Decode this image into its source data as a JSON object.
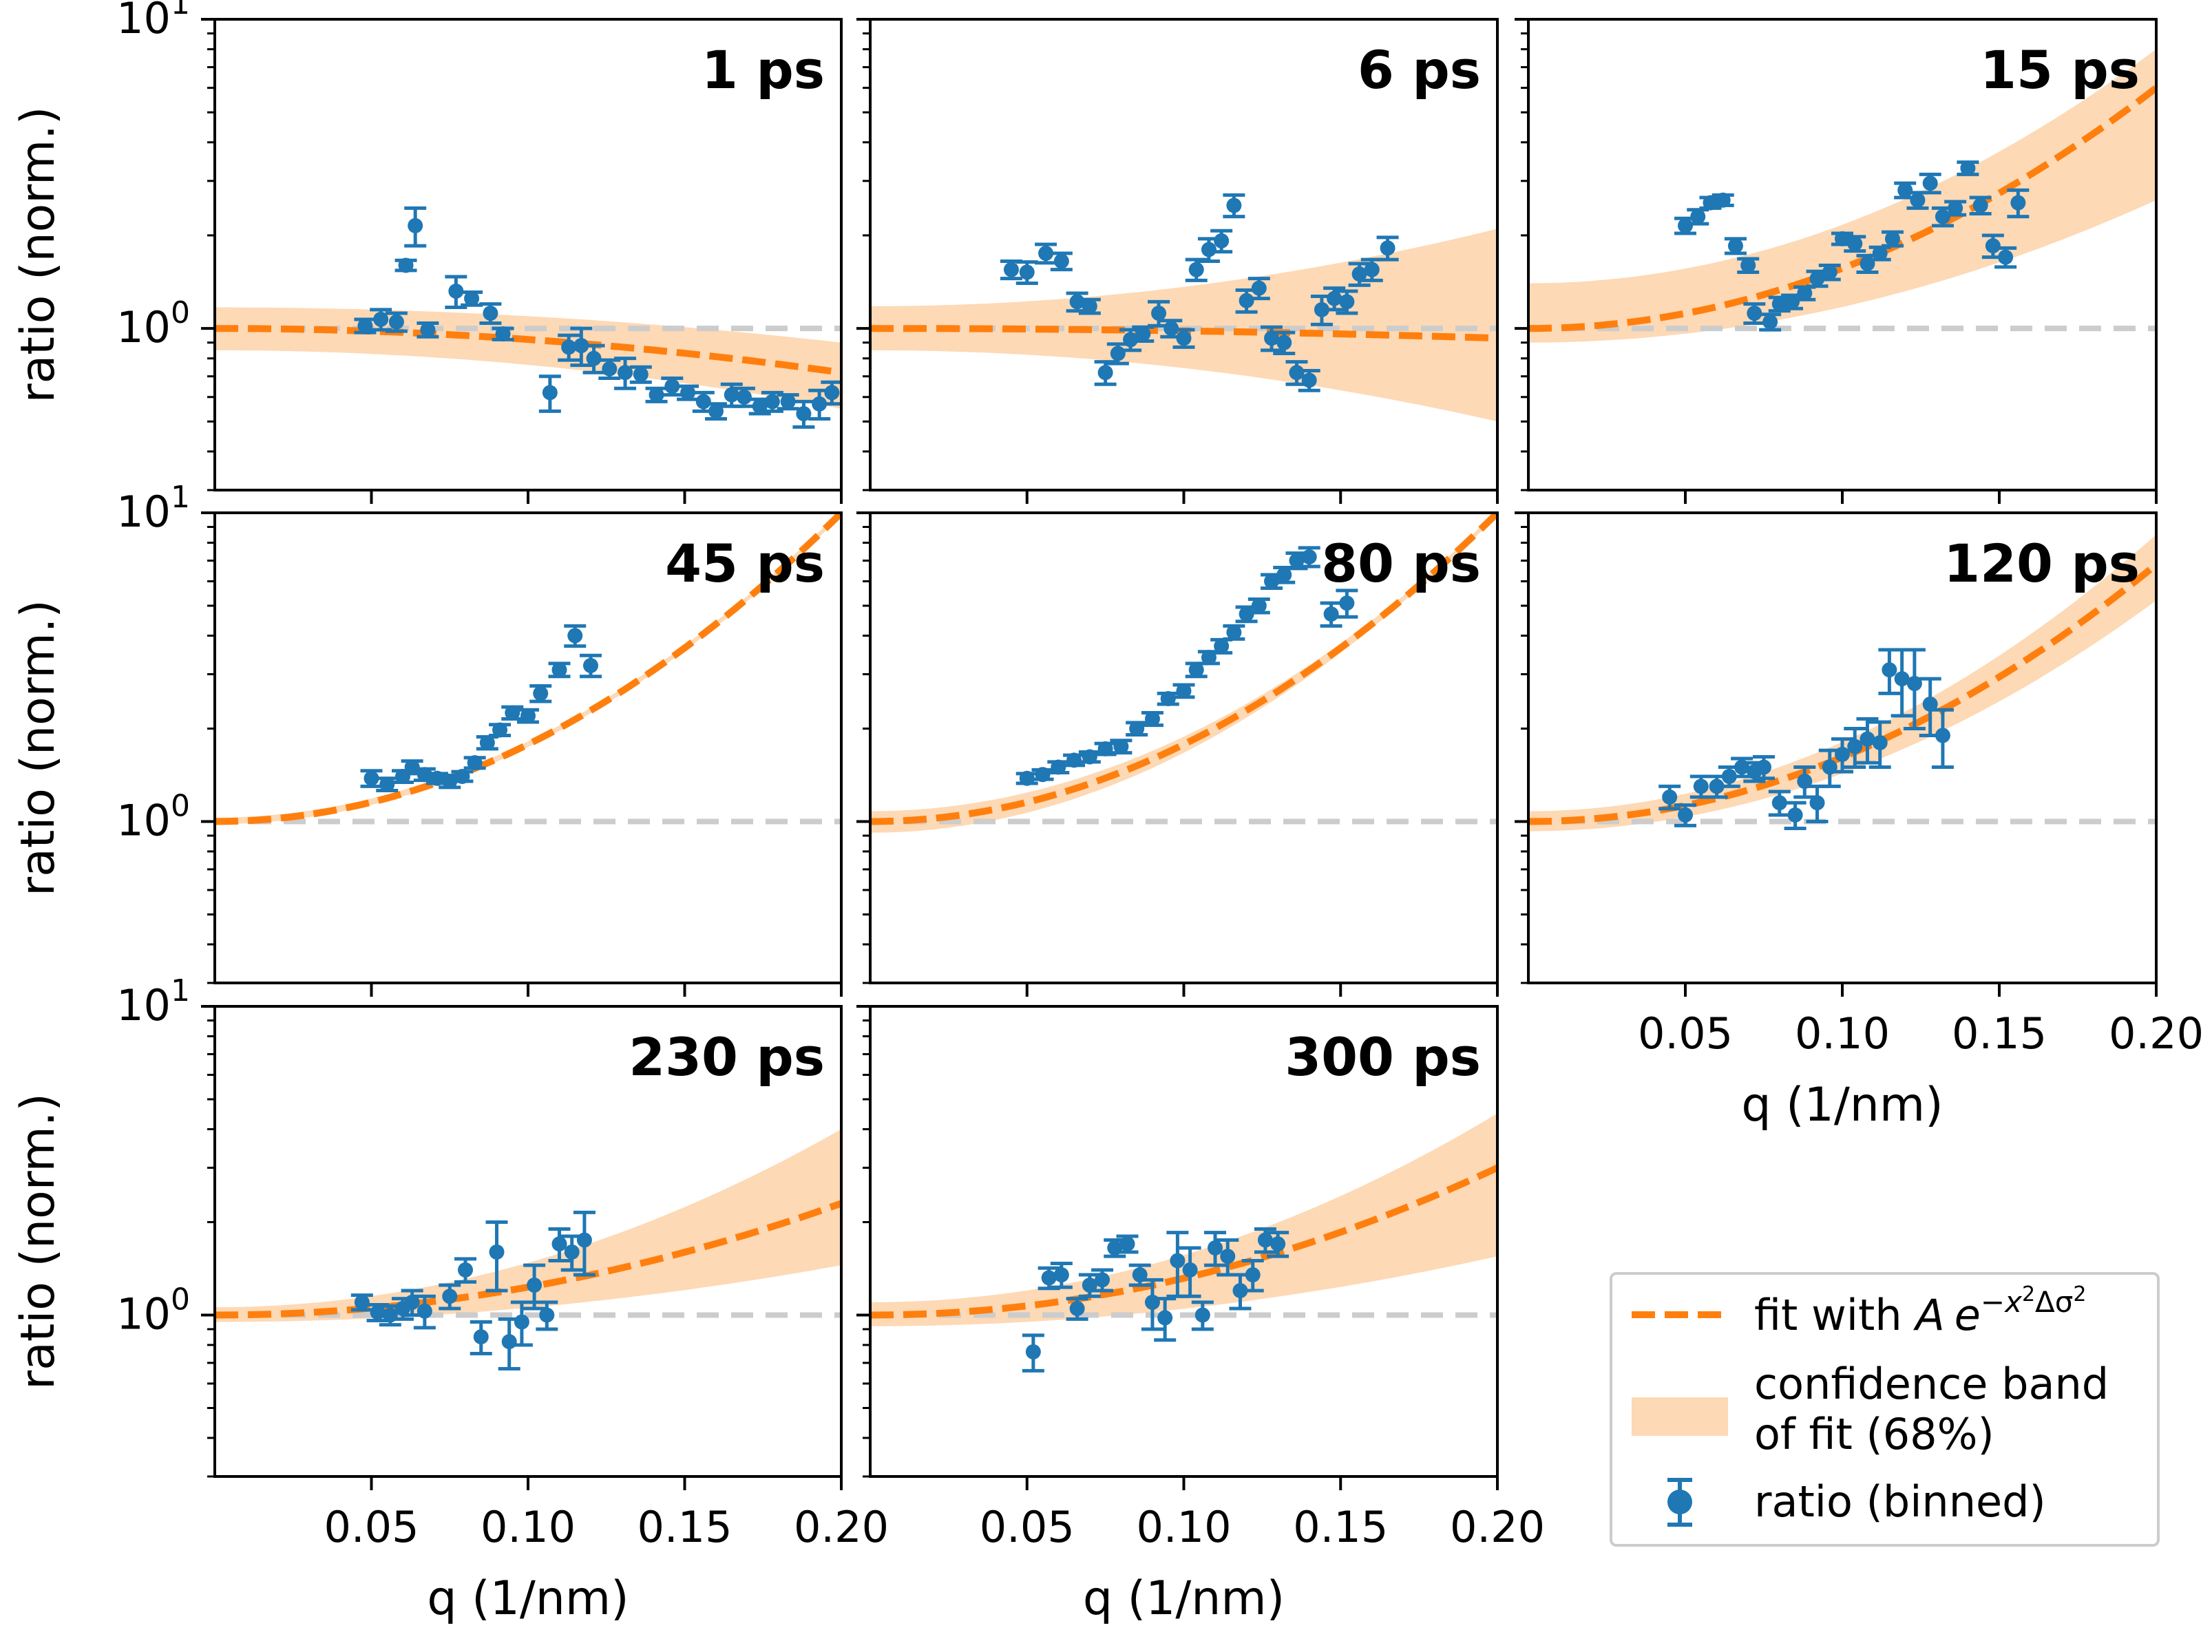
{
  "chart_data": {
    "type": "scatter",
    "layout": "3x3 grid of panels, shared log-scale y axis, shared linear x axis",
    "xlabel": "q (1/nm)",
    "ylabel": "ratio (norm.)",
    "xlim": [
      0.0,
      0.2
    ],
    "ylim": [
      0.3,
      10
    ],
    "yscale": "log",
    "reference_line": 1.0,
    "x_ticks": [
      0.05,
      0.1,
      0.15,
      0.2
    ],
    "x_tick_labels": [
      "0.05",
      "0.10",
      "0.15",
      "0.20"
    ],
    "y_tick_labels": {
      "top": "10",
      "top_exp": "1",
      "mid": "10",
      "mid_exp": "0"
    },
    "colors": {
      "data": "#1f77b4",
      "fit": "#ff7f0e",
      "band": "#fdd9b5",
      "reference": "#cccccc",
      "legend_border": "#cccccc"
    },
    "legend": {
      "placement": "lower-right",
      "fit_prefix": "fit with ",
      "fit_formula": {
        "A": "A",
        "e": "e",
        "sup1": "−x",
        "sup2": "2",
        "sup3": "Δσ",
        "sup4": "2"
      },
      "band_label_line1": "confidence band",
      "band_label_line2": "of fit (68%)",
      "data_label": "ratio (binned)"
    },
    "panels": [
      {
        "label": "1 ps",
        "row": 0,
        "col": 0,
        "fit_endpoint": 0.72,
        "band_low_end": 0.55,
        "band_high_end": 0.9,
        "band_start": [
          0.85,
          1.17
        ],
        "points": [
          [
            0.048,
            1.02,
            0.05
          ],
          [
            0.053,
            1.07,
            0.08
          ],
          [
            0.058,
            1.05,
            0.07
          ],
          [
            0.061,
            1.6,
            0.06
          ],
          [
            0.064,
            2.15,
            0.3
          ],
          [
            0.068,
            0.99,
            0.05
          ],
          [
            0.077,
            1.32,
            0.15
          ],
          [
            0.082,
            1.25,
            0.06
          ],
          [
            0.088,
            1.12,
            0.08
          ],
          [
            0.092,
            0.96,
            0.04
          ],
          [
            0.107,
            0.62,
            0.08
          ],
          [
            0.113,
            0.87,
            0.08
          ],
          [
            0.117,
            0.88,
            0.12
          ],
          [
            0.121,
            0.8,
            0.08
          ],
          [
            0.126,
            0.74,
            0.05
          ],
          [
            0.131,
            0.72,
            0.08
          ],
          [
            0.136,
            0.71,
            0.04
          ],
          [
            0.141,
            0.61,
            0.03
          ],
          [
            0.146,
            0.65,
            0.04
          ],
          [
            0.151,
            0.62,
            0.03
          ],
          [
            0.156,
            0.58,
            0.04
          ],
          [
            0.16,
            0.54,
            0.03
          ],
          [
            0.165,
            0.61,
            0.05
          ],
          [
            0.169,
            0.6,
            0.04
          ],
          [
            0.174,
            0.56,
            0.03
          ],
          [
            0.178,
            0.58,
            0.04
          ],
          [
            0.183,
            0.58,
            0.03
          ],
          [
            0.188,
            0.53,
            0.05
          ],
          [
            0.193,
            0.57,
            0.06
          ],
          [
            0.197,
            0.62,
            0.05
          ]
        ]
      },
      {
        "label": "6 ps",
        "row": 0,
        "col": 1,
        "fit_endpoint": 0.93,
        "band_low_end": 0.5,
        "band_high_end": 2.1,
        "band_start": [
          0.85,
          1.18
        ],
        "points": [
          [
            0.045,
            1.55,
            0.1
          ],
          [
            0.05,
            1.52,
            0.12
          ],
          [
            0.056,
            1.75,
            0.12
          ],
          [
            0.061,
            1.65,
            0.1
          ],
          [
            0.066,
            1.22,
            0.08
          ],
          [
            0.07,
            1.18,
            0.06
          ],
          [
            0.075,
            0.72,
            0.06
          ],
          [
            0.079,
            0.83,
            0.06
          ],
          [
            0.083,
            0.92,
            0.07
          ],
          [
            0.087,
            0.96,
            0.05
          ],
          [
            0.092,
            1.12,
            0.1
          ],
          [
            0.096,
            1.0,
            0.06
          ],
          [
            0.1,
            0.93,
            0.06
          ],
          [
            0.104,
            1.55,
            0.12
          ],
          [
            0.108,
            1.8,
            0.15
          ],
          [
            0.112,
            1.92,
            0.15
          ],
          [
            0.116,
            2.5,
            0.2
          ],
          [
            0.12,
            1.23,
            0.1
          ],
          [
            0.124,
            1.35,
            0.1
          ],
          [
            0.128,
            0.93,
            0.08
          ],
          [
            0.132,
            0.9,
            0.07
          ],
          [
            0.136,
            0.72,
            0.06
          ],
          [
            0.14,
            0.68,
            0.05
          ],
          [
            0.144,
            1.15,
            0.12
          ],
          [
            0.148,
            1.25,
            0.1
          ],
          [
            0.152,
            1.22,
            0.1
          ],
          [
            0.156,
            1.5,
            0.12
          ],
          [
            0.16,
            1.55,
            0.12
          ],
          [
            0.165,
            1.82,
            0.15
          ]
        ]
      },
      {
        "label": "15 ps",
        "row": 0,
        "col": 2,
        "fit_endpoint": 6.0,
        "band_low_end": 2.6,
        "band_high_end": 8.0,
        "band_start": [
          0.9,
          1.4
        ],
        "points": [
          [
            0.05,
            2.15,
            0.12
          ],
          [
            0.054,
            2.3,
            0.12
          ],
          [
            0.058,
            2.55,
            0.1
          ],
          [
            0.062,
            2.6,
            0.1
          ],
          [
            0.066,
            1.85,
            0.1
          ],
          [
            0.07,
            1.6,
            0.08
          ],
          [
            0.072,
            1.12,
            0.08
          ],
          [
            0.077,
            1.05,
            0.06
          ],
          [
            0.08,
            1.2,
            0.06
          ],
          [
            0.084,
            1.22,
            0.06
          ],
          [
            0.088,
            1.3,
            0.06
          ],
          [
            0.092,
            1.45,
            0.08
          ],
          [
            0.096,
            1.52,
            0.08
          ],
          [
            0.1,
            1.95,
            0.08
          ],
          [
            0.104,
            1.88,
            0.1
          ],
          [
            0.108,
            1.62,
            0.1
          ],
          [
            0.112,
            1.75,
            0.08
          ],
          [
            0.116,
            1.95,
            0.1
          ],
          [
            0.12,
            2.8,
            0.15
          ],
          [
            0.124,
            2.6,
            0.15
          ],
          [
            0.128,
            2.95,
            0.2
          ],
          [
            0.132,
            2.3,
            0.15
          ],
          [
            0.136,
            2.45,
            0.12
          ],
          [
            0.14,
            3.3,
            0.15
          ],
          [
            0.144,
            2.5,
            0.15
          ],
          [
            0.148,
            1.85,
            0.15
          ],
          [
            0.152,
            1.7,
            0.12
          ],
          [
            0.156,
            2.55,
            0.25
          ]
        ]
      },
      {
        "label": "45 ps",
        "row": 1,
        "col": 0,
        "fit_endpoint": 9.99,
        "band_low_end": 9.99,
        "band_high_end": 9.99,
        "band_start": [
          0.98,
          1.03
        ],
        "points": [
          [
            0.05,
            1.38,
            0.08
          ],
          [
            0.055,
            1.32,
            0.06
          ],
          [
            0.06,
            1.4,
            0.06
          ],
          [
            0.063,
            1.5,
            0.07
          ],
          [
            0.067,
            1.42,
            0.06
          ],
          [
            0.071,
            1.38,
            0.05
          ],
          [
            0.075,
            1.35,
            0.06
          ],
          [
            0.079,
            1.4,
            0.05
          ],
          [
            0.083,
            1.55,
            0.06
          ],
          [
            0.087,
            1.8,
            0.08
          ],
          [
            0.091,
            1.98,
            0.08
          ],
          [
            0.095,
            2.25,
            0.1
          ],
          [
            0.1,
            2.2,
            0.1
          ],
          [
            0.104,
            2.6,
            0.15
          ],
          [
            0.11,
            3.1,
            0.15
          ],
          [
            0.115,
            4.0,
            0.3
          ],
          [
            0.12,
            3.2,
            0.25
          ]
        ]
      },
      {
        "label": "80 ps",
        "row": 1,
        "col": 1,
        "fit_endpoint": 9.99,
        "band_low_end": 9.99,
        "band_high_end": 9.99,
        "band_start": [
          0.92,
          1.08
        ],
        "points": [
          [
            0.05,
            1.38,
            0.05
          ],
          [
            0.055,
            1.42,
            0.05
          ],
          [
            0.06,
            1.5,
            0.06
          ],
          [
            0.065,
            1.58,
            0.06
          ],
          [
            0.07,
            1.62,
            0.06
          ],
          [
            0.075,
            1.72,
            0.07
          ],
          [
            0.08,
            1.75,
            0.08
          ],
          [
            0.085,
            2.0,
            0.09
          ],
          [
            0.09,
            2.15,
            0.1
          ],
          [
            0.095,
            2.5,
            0.1
          ],
          [
            0.1,
            2.65,
            0.12
          ],
          [
            0.104,
            3.1,
            0.15
          ],
          [
            0.108,
            3.4,
            0.15
          ],
          [
            0.112,
            3.7,
            0.18
          ],
          [
            0.116,
            4.1,
            0.2
          ],
          [
            0.12,
            4.7,
            0.25
          ],
          [
            0.124,
            5.0,
            0.25
          ],
          [
            0.128,
            6.0,
            0.3
          ],
          [
            0.132,
            6.3,
            0.35
          ],
          [
            0.136,
            7.0,
            0.4
          ],
          [
            0.14,
            7.2,
            0.5
          ],
          [
            0.147,
            4.7,
            0.4
          ],
          [
            0.152,
            5.1,
            0.5
          ]
        ]
      },
      {
        "label": "120 ps",
        "row": 1,
        "col": 2,
        "fit_endpoint": 6.8,
        "band_low_end": 5.2,
        "band_high_end": 8.5,
        "band_start": [
          0.93,
          1.08
        ],
        "points": [
          [
            0.045,
            1.2,
            0.1
          ],
          [
            0.05,
            1.05,
            0.08
          ],
          [
            0.055,
            1.3,
            0.1
          ],
          [
            0.06,
            1.3,
            0.1
          ],
          [
            0.064,
            1.4,
            0.1
          ],
          [
            0.068,
            1.5,
            0.1
          ],
          [
            0.072,
            1.45,
            0.1
          ],
          [
            0.075,
            1.5,
            0.12
          ],
          [
            0.08,
            1.15,
            0.1
          ],
          [
            0.085,
            1.05,
            0.1
          ],
          [
            0.088,
            1.35,
            0.15
          ],
          [
            0.092,
            1.15,
            0.15
          ],
          [
            0.096,
            1.5,
            0.2
          ],
          [
            0.1,
            1.65,
            0.2
          ],
          [
            0.104,
            1.75,
            0.25
          ],
          [
            0.108,
            1.85,
            0.3
          ],
          [
            0.112,
            1.8,
            0.3
          ],
          [
            0.115,
            3.1,
            0.5
          ],
          [
            0.119,
            2.9,
            0.7
          ],
          [
            0.123,
            2.8,
            0.8
          ],
          [
            0.128,
            2.4,
            0.5
          ],
          [
            0.132,
            1.9,
            0.4
          ]
        ]
      },
      {
        "label": "230 ps",
        "row": 2,
        "col": 0,
        "fit_endpoint": 2.3,
        "band_low_end": 1.45,
        "band_high_end": 4.0,
        "band_start": [
          0.95,
          1.06
        ],
        "points": [
          [
            0.047,
            1.1,
            0.06
          ],
          [
            0.052,
            1.02,
            0.06
          ],
          [
            0.056,
            1.0,
            0.07
          ],
          [
            0.06,
            1.05,
            0.08
          ],
          [
            0.063,
            1.1,
            0.1
          ],
          [
            0.067,
            1.03,
            0.12
          ],
          [
            0.075,
            1.15,
            0.1
          ],
          [
            0.08,
            1.4,
            0.12
          ],
          [
            0.085,
            0.85,
            0.1
          ],
          [
            0.09,
            1.6,
            0.4
          ],
          [
            0.094,
            0.82,
            0.15
          ],
          [
            0.098,
            0.95,
            0.15
          ],
          [
            0.102,
            1.25,
            0.2
          ],
          [
            0.106,
            1.0,
            0.1
          ],
          [
            0.11,
            1.7,
            0.2
          ],
          [
            0.114,
            1.6,
            0.2
          ],
          [
            0.118,
            1.75,
            0.4
          ]
        ]
      },
      {
        "label": "300 ps",
        "row": 2,
        "col": 1,
        "fit_endpoint": 3.0,
        "band_low_end": 1.55,
        "band_high_end": 4.5,
        "band_start": [
          0.92,
          1.1
        ],
        "points": [
          [
            0.052,
            0.76,
            0.1
          ],
          [
            0.057,
            1.32,
            0.1
          ],
          [
            0.061,
            1.35,
            0.12
          ],
          [
            0.066,
            1.05,
            0.08
          ],
          [
            0.07,
            1.25,
            0.1
          ],
          [
            0.074,
            1.3,
            0.1
          ],
          [
            0.078,
            1.65,
            0.1
          ],
          [
            0.082,
            1.7,
            0.1
          ],
          [
            0.086,
            1.35,
            0.1
          ],
          [
            0.09,
            1.1,
            0.2
          ],
          [
            0.094,
            0.98,
            0.15
          ],
          [
            0.098,
            1.5,
            0.35
          ],
          [
            0.102,
            1.4,
            0.25
          ],
          [
            0.106,
            1.0,
            0.1
          ],
          [
            0.11,
            1.65,
            0.2
          ],
          [
            0.114,
            1.55,
            0.2
          ],
          [
            0.118,
            1.2,
            0.15
          ],
          [
            0.122,
            1.35,
            0.15
          ],
          [
            0.126,
            1.75,
            0.15
          ],
          [
            0.13,
            1.7,
            0.15
          ]
        ]
      }
    ]
  }
}
